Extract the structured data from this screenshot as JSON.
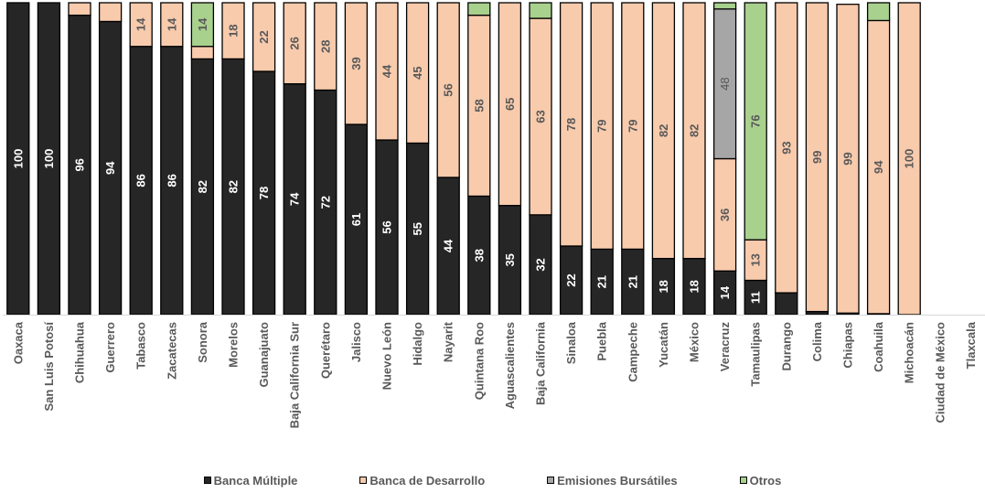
{
  "chart_data": {
    "type": "bar",
    "stacked": true,
    "percent": true,
    "ylim": [
      0,
      100
    ],
    "categories": [
      "Oaxaca",
      "San Luis Potosí",
      "Chihuahua",
      "Guerrero",
      "Tabasco",
      "Zacatecas",
      "Sonora",
      "Morelos",
      "Guanajuato",
      "Baja California Sur",
      "Querétaro",
      "Jalisco",
      "Nuevo León",
      "Hidalgo",
      "Nayarit",
      "Quintana Roo",
      "Aguascalientes",
      "Baja California",
      "Sinaloa",
      "Puebla",
      "Campeche",
      "Yucatán",
      "México",
      "Veracruz",
      "Tamaulipas",
      "Durango",
      "Colima",
      "Chiapas",
      "Coahuila",
      "Michoacán",
      "Ciudad de México",
      "Tlaxcala"
    ],
    "series": [
      {
        "name": "Banca Múltiple",
        "color": "#262626",
        "border": "#000000",
        "values": [
          100,
          100,
          96,
          94,
          86,
          86,
          82,
          82,
          78,
          74,
          72,
          61,
          56,
          55,
          44,
          38,
          35,
          32,
          22,
          21,
          21,
          18,
          18,
          14,
          11,
          7,
          1,
          0.5,
          0.3,
          0,
          0,
          0
        ],
        "labels": [
          "100",
          "100",
          "96",
          "94",
          "86",
          "86",
          "82",
          "82",
          "78",
          "74",
          "72",
          "61",
          "56",
          "55",
          "44",
          "38",
          "35",
          "32",
          "22",
          "21",
          "21",
          "18",
          "18",
          "14",
          "11",
          "",
          "",
          "",
          "",
          "",
          "",
          ""
        ]
      },
      {
        "name": "Banca de Desarrollo",
        "color": "#F8CBAD",
        "border": "#000000",
        "values": [
          0,
          0,
          4,
          6,
          14,
          14,
          4,
          18,
          22,
          26,
          28,
          39,
          44,
          45,
          56,
          58,
          65,
          63,
          78,
          79,
          79,
          82,
          82,
          36,
          13,
          93,
          99,
          99,
          94,
          100,
          0,
          0
        ],
        "labels": [
          "",
          "",
          "",
          "",
          "14",
          "14",
          "",
          "18",
          "22",
          "26",
          "28",
          "39",
          "44",
          "45",
          "56",
          "58",
          "65",
          "63",
          "78",
          "79",
          "79",
          "82",
          "82",
          "36",
          "13",
          "93",
          "99",
          "99",
          "94",
          "100",
          "",
          ""
        ]
      },
      {
        "name": "Emisiones Bursátiles",
        "color": "#A6A6A6",
        "border": "#000000",
        "values": [
          0,
          0,
          0,
          0,
          0,
          0,
          0,
          0,
          0,
          0,
          0,
          0,
          0,
          0,
          0,
          0,
          0,
          0,
          0,
          0,
          0,
          0,
          0,
          48,
          0,
          0,
          0,
          0,
          0,
          0,
          0,
          0
        ],
        "labels": [
          "",
          "",
          "",
          "",
          "",
          "",
          "",
          "",
          "",
          "",
          "",
          "",
          "",
          "",
          "",
          "",
          "",
          "",
          "",
          "",
          "",
          "",
          "",
          "48",
          "",
          "",
          "",
          "",
          "",
          "",
          "",
          ""
        ]
      },
      {
        "name": "Otros",
        "color": "#A9D18E",
        "border": "#000000",
        "values": [
          0,
          0,
          0,
          0,
          0,
          0,
          14,
          0,
          0,
          0,
          0,
          0,
          0,
          0,
          0,
          4,
          0,
          5,
          0,
          0,
          0,
          0,
          0,
          2,
          76,
          0,
          0,
          0,
          5.7,
          0,
          0,
          0
        ],
        "labels": [
          "",
          "",
          "",
          "",
          "",
          "",
          "14",
          "",
          "",
          "",
          "",
          "",
          "",
          "",
          "",
          "",
          "",
          "",
          "",
          "",
          "",
          "",
          "",
          "",
          "76",
          "",
          "",
          "",
          "",
          "",
          "",
          ""
        ]
      }
    ],
    "legend_position": "bottom",
    "grid": false
  },
  "legend": {
    "items": [
      {
        "label": "Banca Múltiple",
        "color": "#262626"
      },
      {
        "label": "Banca de Desarrollo",
        "color": "#F8CBAD"
      },
      {
        "label": "Emisiones Bursátiles",
        "color": "#A6A6A6"
      },
      {
        "label": "Otros",
        "color": "#A9D18E"
      }
    ]
  }
}
